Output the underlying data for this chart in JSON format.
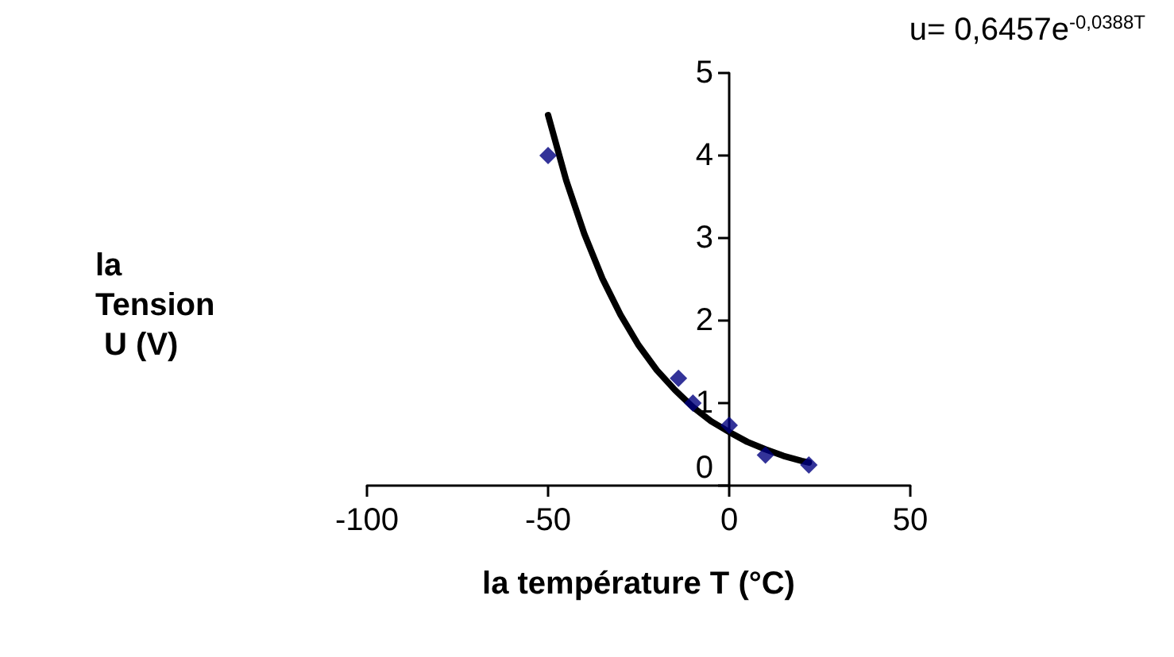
{
  "chart_data": {
    "type": "scatter",
    "xlabel": "la température T (°C)",
    "ylabel": "la Tension U (V)",
    "annotations": [
      "u= 0,6457e$^{-0,0388T}$"
    ],
    "xlim": [
      -100,
      50
    ],
    "xticks": [
      -100,
      -50,
      0,
      50
    ],
    "ylim": [
      0,
      5
    ],
    "yticks": [
      0,
      1,
      2,
      3,
      4,
      5
    ],
    "grid": false,
    "marker": "diamond",
    "series": [
      {
        "color": "#000080",
        "x": [
          -50,
          -14,
          -10,
          0,
          10,
          22
        ],
        "values": [
          4.0,
          1.3,
          1.0,
          0.73,
          0.37,
          0.25
        ]
      },
      {
        "type": "line",
        "color": "#000000",
        "marker": "none",
        "line_style": "solid",
        "x": [
          -50,
          -45,
          -40,
          -35,
          -30,
          -25,
          -20,
          -15,
          -10,
          -5,
          0,
          5,
          10,
          15,
          20,
          22
        ],
        "values": [
          4.49,
          3.7,
          3.05,
          2.51,
          2.07,
          1.7,
          1.4,
          1.16,
          0.95,
          0.78,
          0.65,
          0.53,
          0.44,
          0.36,
          0.3,
          0.28
        ]
      }
    ]
  }
}
